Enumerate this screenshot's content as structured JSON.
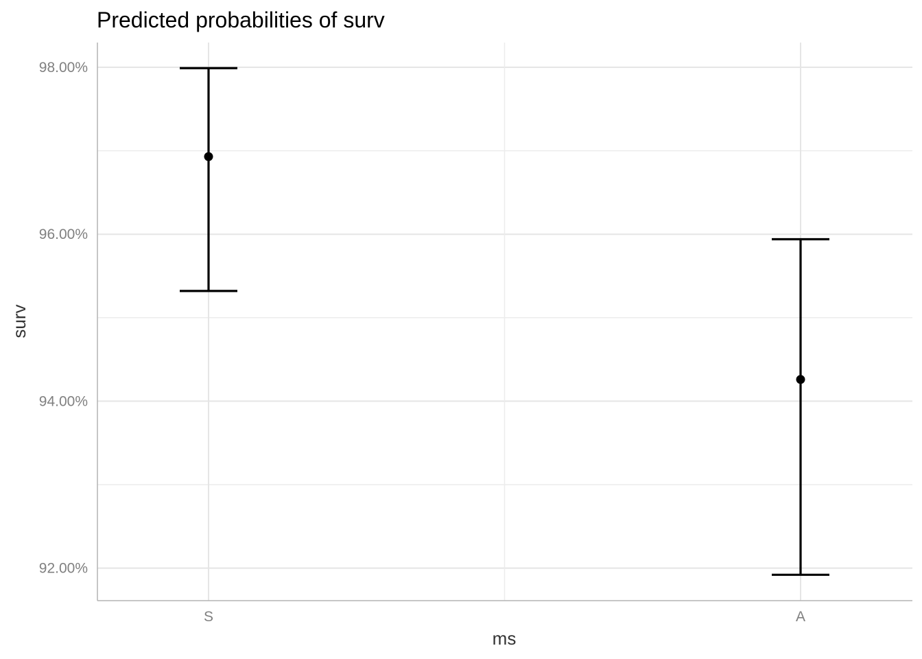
{
  "chart_data": {
    "type": "scatter",
    "title": "Predicted probabilities of surv",
    "xlabel": "ms",
    "ylabel": "surv",
    "categories": [
      "S",
      "A"
    ],
    "series": [
      {
        "values": [
          96.93,
          94.26
        ],
        "lower": [
          95.32,
          91.92
        ],
        "upper": [
          97.99,
          95.94
        ]
      }
    ],
    "ylim": [
      91.6,
      98.3
    ],
    "y_ticks": [
      92,
      94,
      96,
      98
    ],
    "y_tick_labels": [
      "92.00%",
      "94.00%",
      "96.00%",
      "98.00%"
    ],
    "y_minor_ticks": [
      93,
      95,
      97
    ],
    "grid": true,
    "legend": "none",
    "colors": {
      "marks": "#000000",
      "grid": "#e5e5e5",
      "tick_text": "#808080"
    }
  }
}
